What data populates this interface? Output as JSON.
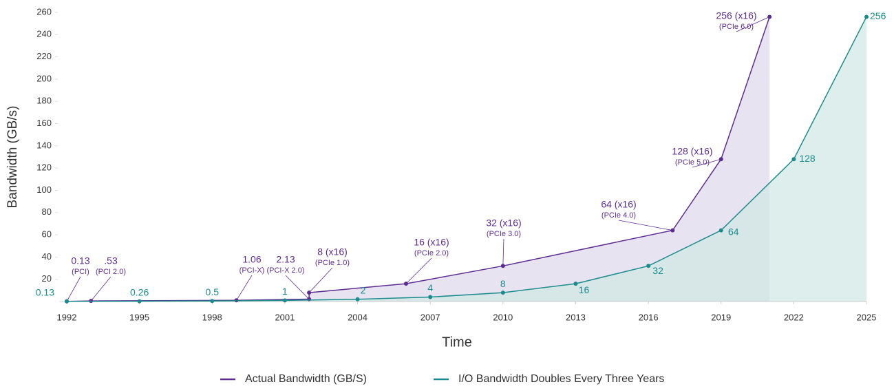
{
  "chart_data": {
    "type": "line",
    "x_label": "Time",
    "y_label": "Bandwidth (GB/s)",
    "xlim": [
      1992,
      2025
    ],
    "xticks": [
      1992,
      1995,
      1998,
      2001,
      2004,
      2007,
      2010,
      2013,
      2016,
      2019,
      2022,
      2025
    ],
    "ylim": [
      0,
      260
    ],
    "yticks": [
      20,
      40,
      60,
      80,
      100,
      120,
      140,
      160,
      180,
      200,
      220,
      240,
      260
    ],
    "legend": "bottom",
    "series": [
      {
        "name": "Actual Bandwidth (GB/S)",
        "color": "#5c2d91",
        "fill": "#e6e0ee",
        "x": [
          1992,
          1993,
          1999,
          2002,
          2002,
          2006,
          2010,
          2017,
          2019,
          2021
        ],
        "values": [
          0.13,
          0.53,
          1.06,
          2.13,
          8,
          16,
          32,
          64,
          128,
          256
        ],
        "value_labels": [
          "0.13",
          ".53",
          "1.06",
          "2.13",
          "8 (x16)",
          "16 (x16)",
          "32 (x16)",
          "64 (x16)",
          "128 (x16)",
          "256 (x16)"
        ],
        "sublabels": [
          "(PCI)",
          "(PCI 2.0)",
          "(PCI-X)",
          "(PCI-X 2.0)",
          "(PCIe 1.0)",
          "(PCIe 2.0)",
          "(PCIe 3.0)",
          "(PCIe 4.0)",
          "(PCIe 5.0)",
          "(PCIe 6.0)"
        ]
      },
      {
        "name": "I/O Bandwidth Doubles Every Three Years",
        "color": "#1a8c8c",
        "fill": "#d2e8e6",
        "x": [
          1992,
          1995,
          1998,
          2001,
          2004,
          2007,
          2010,
          2013,
          2016,
          2019,
          2022,
          2025
        ],
        "values": [
          0.13,
          0.26,
          0.5,
          1,
          2,
          4,
          8,
          16,
          32,
          64,
          128,
          256
        ]
      }
    ]
  }
}
